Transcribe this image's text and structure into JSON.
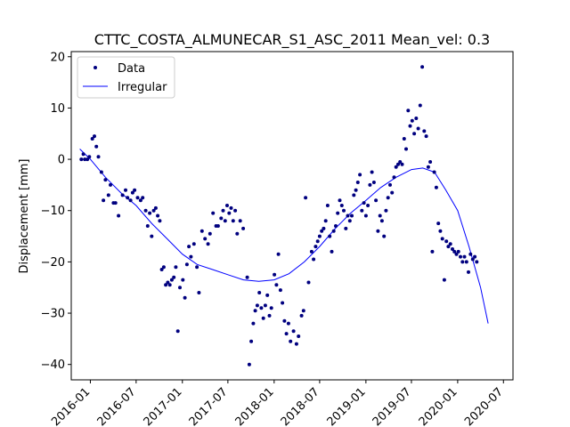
{
  "chart_data": {
    "type": "scatter",
    "title": "CTTC_COSTA_ALMUNECAR_S1_ASC_2011    Mean_vel: 0.3",
    "xlabel": "",
    "ylabel": "Displacement [mm]",
    "xlim": [
      "2015-10-17",
      "2020-08-08"
    ],
    "ylim": [
      -43,
      21
    ],
    "x_ticks": [
      "2016-01",
      "2016-07",
      "2017-01",
      "2017-07",
      "2018-01",
      "2018-07",
      "2019-01",
      "2019-07",
      "2020-01",
      "2020-07"
    ],
    "y_ticks": [
      20,
      10,
      0,
      -10,
      -20,
      -30,
      -40
    ],
    "grid": false,
    "legend_position": "top-left",
    "colors": {
      "data": "#00007f",
      "irregular": "#0000ff"
    },
    "series": [
      {
        "name": "Data",
        "style": "points",
        "points": [
          [
            "2015-11-26",
            0
          ],
          [
            "2015-12-04",
            1
          ],
          [
            "2015-12-10",
            0
          ],
          [
            "2015-12-20",
            0
          ],
          [
            "2015-12-28",
            0.5
          ],
          [
            "2016-01-09",
            4
          ],
          [
            "2016-01-17",
            4.5
          ],
          [
            "2016-01-25",
            2.5
          ],
          [
            "2016-02-02",
            0.5
          ],
          [
            "2016-02-14",
            -2.5
          ],
          [
            "2016-02-22",
            -8
          ],
          [
            "2016-03-01",
            -4
          ],
          [
            "2016-03-13",
            -7
          ],
          [
            "2016-03-21",
            -5
          ],
          [
            "2016-04-02",
            -8.5
          ],
          [
            "2016-04-10",
            -8.5
          ],
          [
            "2016-04-22",
            -11
          ],
          [
            "2016-05-08",
            -7
          ],
          [
            "2016-05-20",
            -6
          ],
          [
            "2016-05-28",
            -7.5
          ],
          [
            "2016-06-09",
            -8
          ],
          [
            "2016-06-17",
            -6.5
          ],
          [
            "2016-06-25",
            -6
          ],
          [
            "2016-07-07",
            -7.5
          ],
          [
            "2016-07-19",
            -8
          ],
          [
            "2016-07-27",
            -7.5
          ],
          [
            "2016-08-08",
            -10
          ],
          [
            "2016-08-16",
            -13
          ],
          [
            "2016-08-24",
            -10.5
          ],
          [
            "2016-09-01",
            -15
          ],
          [
            "2016-09-09",
            -10
          ],
          [
            "2016-09-17",
            -9.5
          ],
          [
            "2016-09-25",
            -11
          ],
          [
            "2016-10-03",
            -12
          ],
          [
            "2016-10-11",
            -21.5
          ],
          [
            "2016-10-19",
            -21
          ],
          [
            "2016-10-27",
            -24.5
          ],
          [
            "2016-11-04",
            -24
          ],
          [
            "2016-11-12",
            -24.5
          ],
          [
            "2016-11-20",
            -23.5
          ],
          [
            "2016-11-28",
            -23
          ],
          [
            "2016-12-06",
            -21
          ],
          [
            "2016-12-14",
            -33.5
          ],
          [
            "2016-12-22",
            -25
          ],
          [
            "2017-01-03",
            -23.5
          ],
          [
            "2017-01-11",
            -27
          ],
          [
            "2017-01-19",
            -20.5
          ],
          [
            "2017-01-27",
            -17
          ],
          [
            "2017-02-04",
            -19
          ],
          [
            "2017-02-16",
            -16.5
          ],
          [
            "2017-02-28",
            -21
          ],
          [
            "2017-03-08",
            -26
          ],
          [
            "2017-03-20",
            -14
          ],
          [
            "2017-04-01",
            -15.5
          ],
          [
            "2017-04-13",
            -16.5
          ],
          [
            "2017-04-21",
            -14.5
          ],
          [
            "2017-05-03",
            -10.5
          ],
          [
            "2017-05-15",
            -13
          ],
          [
            "2017-05-23",
            -13
          ],
          [
            "2017-06-04",
            -11.5
          ],
          [
            "2017-06-12",
            -10
          ],
          [
            "2017-06-20",
            -12
          ],
          [
            "2017-06-28",
            -9
          ],
          [
            "2017-07-06",
            -10.5
          ],
          [
            "2017-07-14",
            -9.5
          ],
          [
            "2017-07-22",
            -12
          ],
          [
            "2017-07-30",
            -10
          ],
          [
            "2017-08-07",
            -14.5
          ],
          [
            "2017-08-19",
            -12
          ],
          [
            "2017-08-31",
            -13.5
          ],
          [
            "2017-09-16",
            -23
          ],
          [
            "2017-09-24",
            -40
          ],
          [
            "2017-10-02",
            -35.5
          ],
          [
            "2017-10-10",
            -32
          ],
          [
            "2017-10-18",
            -29.5
          ],
          [
            "2017-10-26",
            -28.5
          ],
          [
            "2017-11-03",
            -26
          ],
          [
            "2017-11-11",
            -29
          ],
          [
            "2017-11-19",
            -31
          ],
          [
            "2017-11-27",
            -28.5
          ],
          [
            "2017-12-05",
            -26.5
          ],
          [
            "2017-12-13",
            -30.5
          ],
          [
            "2017-12-21",
            -29
          ],
          [
            "2018-01-02",
            -22.5
          ],
          [
            "2018-01-10",
            -24.5
          ],
          [
            "2018-01-18",
            -18.5
          ],
          [
            "2018-01-26",
            -25.5
          ],
          [
            "2018-02-03",
            -28
          ],
          [
            "2018-02-11",
            -31.5
          ],
          [
            "2018-02-19",
            -34
          ],
          [
            "2018-02-27",
            -32
          ],
          [
            "2018-03-07",
            -35.5
          ],
          [
            "2018-03-19",
            -33.5
          ],
          [
            "2018-03-31",
            -36
          ],
          [
            "2018-04-08",
            -34.5
          ],
          [
            "2018-04-20",
            -30.5
          ],
          [
            "2018-04-28",
            -29.5
          ],
          [
            "2018-05-06",
            -7.5
          ],
          [
            "2018-05-18",
            -24
          ],
          [
            "2018-05-30",
            -18
          ],
          [
            "2018-06-07",
            -19.5
          ],
          [
            "2018-06-15",
            -17
          ],
          [
            "2018-06-23",
            -16
          ],
          [
            "2018-07-01",
            -15
          ],
          [
            "2018-07-09",
            -14
          ],
          [
            "2018-07-17",
            -13.5
          ],
          [
            "2018-07-25",
            -12
          ],
          [
            "2018-08-02",
            -9
          ],
          [
            "2018-08-10",
            -15
          ],
          [
            "2018-08-18",
            -18
          ],
          [
            "2018-08-26",
            -14
          ],
          [
            "2018-09-03",
            -13
          ],
          [
            "2018-09-11",
            -10.5
          ],
          [
            "2018-09-19",
            -8
          ],
          [
            "2018-09-27",
            -9
          ],
          [
            "2018-10-05",
            -10
          ],
          [
            "2018-10-13",
            -13.5
          ],
          [
            "2018-10-21",
            -11
          ],
          [
            "2018-10-29",
            -12
          ],
          [
            "2018-11-06",
            -11
          ],
          [
            "2018-11-14",
            -7
          ],
          [
            "2018-11-22",
            -6
          ],
          [
            "2018-11-30",
            -4.5
          ],
          [
            "2018-12-08",
            -3
          ],
          [
            "2018-12-16",
            -10
          ],
          [
            "2018-12-24",
            -8.5
          ],
          [
            "2019-01-01",
            -11
          ],
          [
            "2019-01-09",
            -9
          ],
          [
            "2019-01-17",
            -5
          ],
          [
            "2019-01-25",
            -2.5
          ],
          [
            "2019-02-02",
            -4.5
          ],
          [
            "2019-02-10",
            -8
          ],
          [
            "2019-02-18",
            -14
          ],
          [
            "2019-02-26",
            -11
          ],
          [
            "2019-03-06",
            -12
          ],
          [
            "2019-03-14",
            -15
          ],
          [
            "2019-03-22",
            -10
          ],
          [
            "2019-03-30",
            -7.5
          ],
          [
            "2019-04-07",
            -5
          ],
          [
            "2019-04-15",
            -6.5
          ],
          [
            "2019-04-23",
            -3.5
          ],
          [
            "2019-05-01",
            -1.5
          ],
          [
            "2019-05-09",
            -1
          ],
          [
            "2019-05-17",
            -0.5
          ],
          [
            "2019-05-25",
            -1
          ],
          [
            "2019-06-02",
            4
          ],
          [
            "2019-06-10",
            2
          ],
          [
            "2019-06-18",
            9.5
          ],
          [
            "2019-06-26",
            6.5
          ],
          [
            "2019-07-04",
            7.5
          ],
          [
            "2019-07-12",
            5
          ],
          [
            "2019-07-20",
            8
          ],
          [
            "2019-07-28",
            6
          ],
          [
            "2019-08-05",
            10.5
          ],
          [
            "2019-08-13",
            18
          ],
          [
            "2019-08-21",
            5.5
          ],
          [
            "2019-08-29",
            4.5
          ],
          [
            "2019-09-06",
            -1.5
          ],
          [
            "2019-09-14",
            -0.5
          ],
          [
            "2019-09-22",
            -18
          ],
          [
            "2019-09-30",
            -2.5
          ],
          [
            "2019-10-08",
            -5.5
          ],
          [
            "2019-10-16",
            -12.5
          ],
          [
            "2019-10-24",
            -14
          ],
          [
            "2019-11-01",
            -15.5
          ],
          [
            "2019-11-09",
            -23.5
          ],
          [
            "2019-11-17",
            -16
          ],
          [
            "2019-11-25",
            -17
          ],
          [
            "2019-12-03",
            -16.5
          ],
          [
            "2019-12-11",
            -17.5
          ],
          [
            "2019-12-19",
            -18
          ],
          [
            "2019-12-27",
            -18.5
          ],
          [
            "2020-01-04",
            -18
          ],
          [
            "2020-01-12",
            -19
          ],
          [
            "2020-01-20",
            -20
          ],
          [
            "2020-01-28",
            -19
          ],
          [
            "2020-02-05",
            -20
          ],
          [
            "2020-02-13",
            -22
          ],
          [
            "2020-02-21",
            -18.5
          ],
          [
            "2020-03-01",
            -19.5
          ],
          [
            "2020-03-09",
            -19
          ],
          [
            "2020-03-17",
            -20
          ]
        ]
      },
      {
        "name": "Irregular",
        "style": "line",
        "points": [
          [
            "2015-11-20",
            2
          ],
          [
            "2016-01-01",
            0
          ],
          [
            "2016-03-01",
            -3.5
          ],
          [
            "2016-05-01",
            -6.5
          ],
          [
            "2016-07-01",
            -9
          ],
          [
            "2016-09-01",
            -12.5
          ],
          [
            "2016-11-01",
            -15.5
          ],
          [
            "2017-01-01",
            -18.5
          ],
          [
            "2017-03-01",
            -20.5
          ],
          [
            "2017-05-01",
            -21.5
          ],
          [
            "2017-07-01",
            -22.5
          ],
          [
            "2017-09-01",
            -23.5
          ],
          [
            "2017-11-01",
            -23.8
          ],
          [
            "2018-01-01",
            -23.5
          ],
          [
            "2018-03-01",
            -22.3
          ],
          [
            "2018-05-01",
            -20
          ],
          [
            "2018-07-01",
            -17
          ],
          [
            "2018-09-01",
            -13.5
          ],
          [
            "2018-11-01",
            -10.5
          ],
          [
            "2019-01-01",
            -8
          ],
          [
            "2019-03-01",
            -5.5
          ],
          [
            "2019-05-01",
            -3.5
          ],
          [
            "2019-07-01",
            -2
          ],
          [
            "2019-08-15",
            -1.7
          ],
          [
            "2019-10-01",
            -2.5
          ],
          [
            "2019-11-15",
            -6
          ],
          [
            "2020-01-01",
            -10
          ],
          [
            "2020-02-15",
            -17
          ],
          [
            "2020-04-01",
            -25
          ],
          [
            "2020-05-01",
            -32
          ]
        ]
      }
    ]
  }
}
